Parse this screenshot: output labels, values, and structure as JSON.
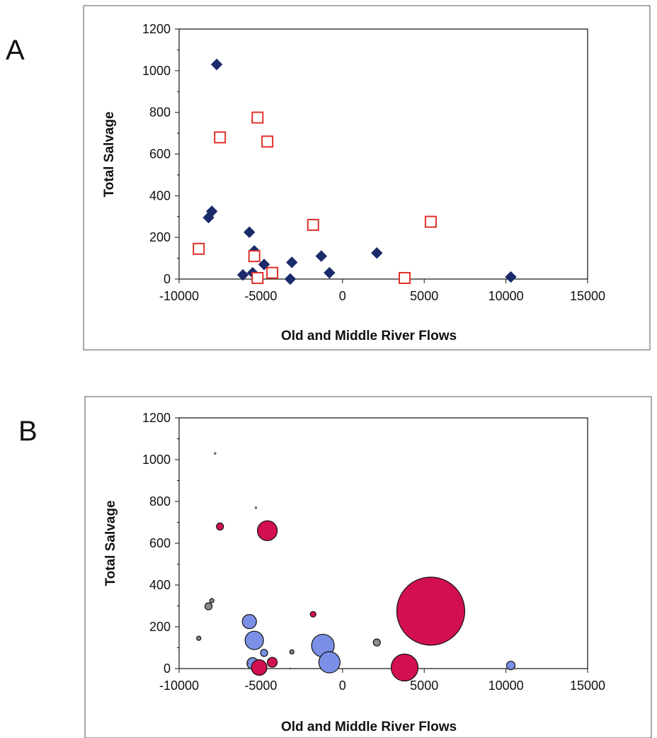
{
  "colors": {
    "diamond": "#1b2a6b",
    "square_stroke": "#e0302a",
    "bubble_blue": "#7b8fe6",
    "bubble_red": "#d3104f",
    "bubble_gray": "#8a8a8a"
  },
  "chart_data": [
    {
      "panel": "A",
      "type": "scatter",
      "title": "",
      "xlabel": "Old and Middle River Flows",
      "ylabel": "Total Salvage",
      "xlim": [
        -10000,
        15000
      ],
      "ylim": [
        0,
        1200
      ],
      "xticks": [
        -10000,
        -5000,
        0,
        5000,
        10000,
        15000
      ],
      "yticks": [
        0,
        200,
        400,
        600,
        800,
        1000,
        1200
      ],
      "grid": false,
      "legend": "none",
      "series": [
        {
          "marker": "diamond-filled",
          "color": "#1b2a6b",
          "points": [
            [
              -7700,
              1030
            ],
            [
              -8000,
              325
            ],
            [
              -8200,
              295
            ],
            [
              -5700,
              225
            ],
            [
              -5400,
              135
            ],
            [
              -5500,
              30
            ],
            [
              -6100,
              20
            ],
            [
              -4800,
              70
            ],
            [
              -3100,
              80
            ],
            [
              -3200,
              0
            ],
            [
              -1300,
              110
            ],
            [
              -800,
              30
            ],
            [
              2100,
              125
            ],
            [
              10300,
              10
            ]
          ]
        },
        {
          "marker": "square-open",
          "color": "#e0302a",
          "points": [
            [
              -7500,
              680
            ],
            [
              -5200,
              775
            ],
            [
              -4600,
              660
            ],
            [
              -8800,
              145
            ],
            [
              -1800,
              260
            ],
            [
              5400,
              275
            ],
            [
              -5400,
              110
            ],
            [
              -5200,
              5
            ],
            [
              -4300,
              30
            ],
            [
              3800,
              5
            ]
          ]
        }
      ]
    },
    {
      "panel": "B",
      "type": "scatter",
      "title": "",
      "xlabel": "Old and Middle River Flows",
      "ylabel": "Total Salvage",
      "xlim": [
        -10000,
        15000
      ],
      "ylim": [
        0,
        1200
      ],
      "xticks": [
        -10000,
        -5000,
        0,
        5000,
        10000,
        15000
      ],
      "yticks": [
        0,
        200,
        400,
        600,
        800,
        1000,
        1200
      ],
      "grid": false,
      "legend": "none",
      "bubbles": [
        {
          "x": -7800,
          "y": 1030,
          "size": 1.5,
          "color": "gray"
        },
        {
          "x": -5300,
          "y": 770,
          "size": 1.5,
          "color": "gray"
        },
        {
          "x": -7500,
          "y": 680,
          "size": 5,
          "color": "red"
        },
        {
          "x": -4600,
          "y": 660,
          "size": 14,
          "color": "red"
        },
        {
          "x": -8000,
          "y": 325,
          "size": 3,
          "color": "gray"
        },
        {
          "x": -8200,
          "y": 298,
          "size": 5,
          "color": "gray"
        },
        {
          "x": -8800,
          "y": 145,
          "size": 3,
          "color": "gray"
        },
        {
          "x": -5700,
          "y": 225,
          "size": 10,
          "color": "blue"
        },
        {
          "x": -5400,
          "y": 135,
          "size": 13,
          "color": "blue"
        },
        {
          "x": -5500,
          "y": 25,
          "size": 8,
          "color": "blue"
        },
        {
          "x": -5800,
          "y": 25,
          "size": 1,
          "color": "gray"
        },
        {
          "x": -4800,
          "y": 75,
          "size": 5,
          "color": "blue"
        },
        {
          "x": -5100,
          "y": 5,
          "size": 11,
          "color": "red"
        },
        {
          "x": -4300,
          "y": 30,
          "size": 7,
          "color": "red"
        },
        {
          "x": -3100,
          "y": 80,
          "size": 3,
          "color": "gray"
        },
        {
          "x": -3200,
          "y": 0,
          "size": 1,
          "color": "gray"
        },
        {
          "x": -1800,
          "y": 260,
          "size": 4,
          "color": "red"
        },
        {
          "x": -1200,
          "y": 110,
          "size": 16,
          "color": "blue"
        },
        {
          "x": -800,
          "y": 30,
          "size": 15,
          "color": "blue"
        },
        {
          "x": 2100,
          "y": 125,
          "size": 5,
          "color": "gray"
        },
        {
          "x": 3800,
          "y": 5,
          "size": 19,
          "color": "red"
        },
        {
          "x": 5400,
          "y": 275,
          "size": 48,
          "color": "red"
        },
        {
          "x": 10300,
          "y": 15,
          "size": 6,
          "color": "blue"
        }
      ]
    }
  ]
}
